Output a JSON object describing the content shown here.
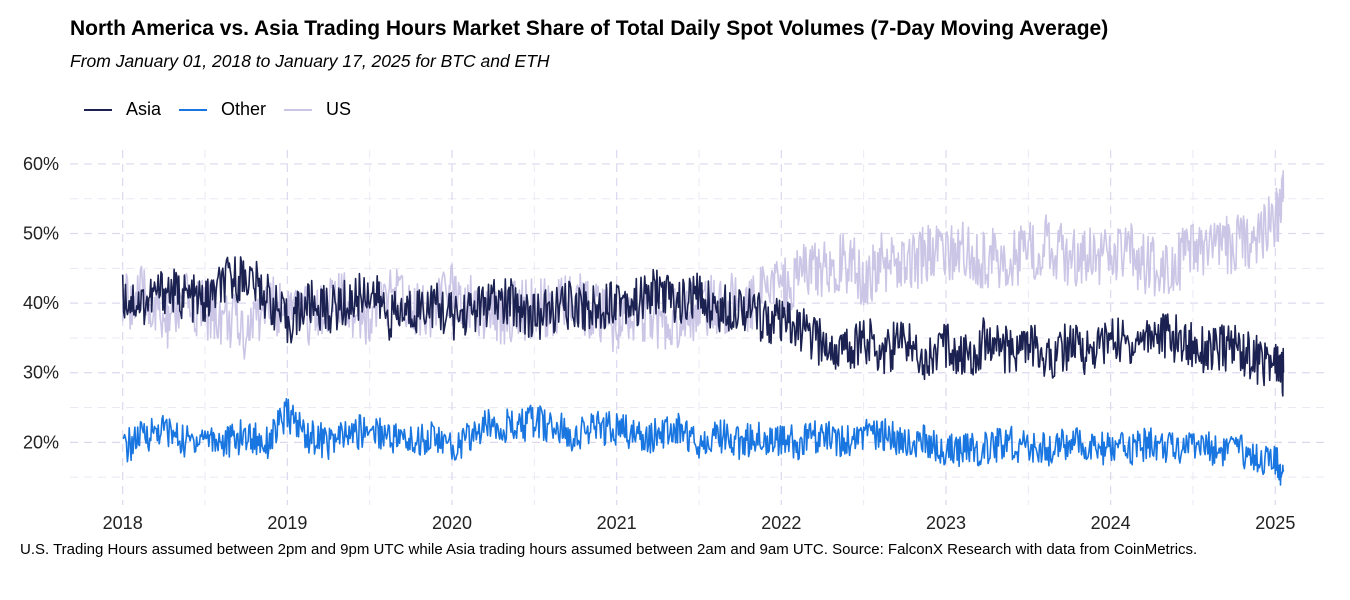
{
  "chart_data": {
    "type": "line",
    "title": "North America vs. Asia Trading Hours Market Share of Total Daily Spot Volumes (7-Day Moving Average)",
    "subtitle": "From January 01, 2018 to January 17, 2025 for BTC and ETH",
    "xlabel": "",
    "ylabel": "",
    "x_ticks": [
      "2018",
      "2019",
      "2020",
      "2021",
      "2022",
      "2023",
      "2024",
      "2025"
    ],
    "y_ticks": [
      "20%",
      "30%",
      "40%",
      "50%",
      "60%"
    ],
    "ylim": [
      0.11,
      0.62
    ],
    "xlim": [
      2017.68,
      2025.32
    ],
    "grid": true,
    "legend_position": "top-left",
    "footnote": "U.S. Trading Hours assumed between 2pm and 9pm UTC while Asia trading hours assumed between 2am and 9am UTC. Source: FalconX Research with data from CoinMetrics.",
    "series": [
      {
        "name": "Asia",
        "color": "#1b2150",
        "x": [
          2018.0,
          2018.125,
          2018.25,
          2018.375,
          2018.5,
          2018.625,
          2018.75,
          2018.875,
          2019.0,
          2019.125,
          2019.25,
          2019.375,
          2019.5,
          2019.625,
          2019.75,
          2019.875,
          2020.0,
          2020.125,
          2020.25,
          2020.375,
          2020.5,
          2020.625,
          2020.75,
          2020.875,
          2021.0,
          2021.125,
          2021.25,
          2021.375,
          2021.5,
          2021.625,
          2021.75,
          2021.875,
          2022.0,
          2022.125,
          2022.25,
          2022.375,
          2022.5,
          2022.625,
          2022.75,
          2022.875,
          2023.0,
          2023.125,
          2023.25,
          2023.375,
          2023.5,
          2023.625,
          2023.75,
          2023.875,
          2024.0,
          2024.125,
          2024.25,
          2024.375,
          2024.5,
          2024.625,
          2024.75,
          2024.875,
          2025.0,
          2025.05
        ],
        "values": [
          0.41,
          0.4,
          0.42,
          0.41,
          0.4,
          0.43,
          0.44,
          0.41,
          0.37,
          0.4,
          0.39,
          0.4,
          0.42,
          0.38,
          0.39,
          0.4,
          0.38,
          0.39,
          0.4,
          0.4,
          0.38,
          0.39,
          0.4,
          0.39,
          0.41,
          0.4,
          0.42,
          0.4,
          0.41,
          0.39,
          0.4,
          0.38,
          0.37,
          0.36,
          0.34,
          0.33,
          0.35,
          0.33,
          0.35,
          0.32,
          0.34,
          0.32,
          0.35,
          0.33,
          0.34,
          0.32,
          0.34,
          0.33,
          0.35,
          0.34,
          0.36,
          0.35,
          0.34,
          0.33,
          0.34,
          0.32,
          0.31,
          0.3
        ]
      },
      {
        "name": "Other",
        "color": "#1976e0",
        "x": [
          2018.0,
          2018.125,
          2018.25,
          2018.375,
          2018.5,
          2018.625,
          2018.75,
          2018.875,
          2019.0,
          2019.125,
          2019.25,
          2019.375,
          2019.5,
          2019.625,
          2019.75,
          2019.875,
          2020.0,
          2020.125,
          2020.25,
          2020.375,
          2020.5,
          2020.625,
          2020.75,
          2020.875,
          2021.0,
          2021.125,
          2021.25,
          2021.375,
          2021.5,
          2021.625,
          2021.75,
          2021.875,
          2022.0,
          2022.125,
          2022.25,
          2022.375,
          2022.5,
          2022.625,
          2022.75,
          2022.875,
          2023.0,
          2023.125,
          2023.25,
          2023.375,
          2023.5,
          2023.625,
          2023.75,
          2023.875,
          2024.0,
          2024.125,
          2024.25,
          2024.375,
          2024.5,
          2024.625,
          2024.75,
          2024.875,
          2025.0,
          2025.05
        ],
        "values": [
          0.19,
          0.21,
          0.22,
          0.2,
          0.21,
          0.2,
          0.21,
          0.2,
          0.24,
          0.21,
          0.2,
          0.21,
          0.22,
          0.21,
          0.2,
          0.21,
          0.19,
          0.21,
          0.23,
          0.22,
          0.23,
          0.22,
          0.21,
          0.22,
          0.22,
          0.21,
          0.21,
          0.22,
          0.2,
          0.21,
          0.2,
          0.21,
          0.2,
          0.2,
          0.21,
          0.2,
          0.21,
          0.21,
          0.2,
          0.2,
          0.19,
          0.19,
          0.19,
          0.2,
          0.19,
          0.19,
          0.2,
          0.19,
          0.19,
          0.19,
          0.2,
          0.19,
          0.2,
          0.19,
          0.19,
          0.18,
          0.17,
          0.16
        ]
      },
      {
        "name": "US",
        "color": "#ccc6e6",
        "x": [
          2018.0,
          2018.125,
          2018.25,
          2018.375,
          2018.5,
          2018.625,
          2018.75,
          2018.875,
          2019.0,
          2019.125,
          2019.25,
          2019.375,
          2019.5,
          2019.625,
          2019.75,
          2019.875,
          2020.0,
          2020.125,
          2020.25,
          2020.375,
          2020.5,
          2020.625,
          2020.75,
          2020.875,
          2021.0,
          2021.125,
          2021.25,
          2021.375,
          2021.5,
          2021.625,
          2021.75,
          2021.875,
          2022.0,
          2022.125,
          2022.25,
          2022.375,
          2022.5,
          2022.625,
          2022.75,
          2022.875,
          2023.0,
          2023.125,
          2023.25,
          2023.375,
          2023.5,
          2023.625,
          2023.75,
          2023.875,
          2024.0,
          2024.125,
          2024.25,
          2024.375,
          2024.5,
          2024.625,
          2024.75,
          2024.875,
          2025.0,
          2025.05
        ],
        "values": [
          0.4,
          0.41,
          0.37,
          0.4,
          0.39,
          0.38,
          0.36,
          0.4,
          0.39,
          0.38,
          0.4,
          0.4,
          0.38,
          0.41,
          0.4,
          0.39,
          0.42,
          0.4,
          0.38,
          0.39,
          0.39,
          0.39,
          0.4,
          0.39,
          0.37,
          0.39,
          0.37,
          0.38,
          0.39,
          0.4,
          0.4,
          0.41,
          0.43,
          0.44,
          0.45,
          0.46,
          0.44,
          0.46,
          0.45,
          0.47,
          0.47,
          0.48,
          0.46,
          0.47,
          0.47,
          0.49,
          0.46,
          0.48,
          0.46,
          0.47,
          0.45,
          0.46,
          0.47,
          0.48,
          0.48,
          0.5,
          0.52,
          0.55
        ]
      }
    ]
  }
}
